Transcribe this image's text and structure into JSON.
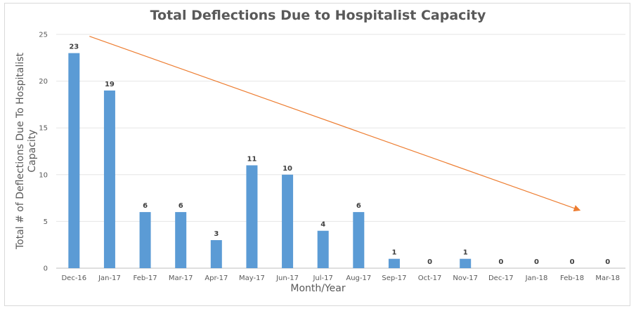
{
  "chart_data": {
    "type": "bar",
    "title": "Total Deflections Due to Hospitalist Capacity",
    "xlabel": "Month/Year",
    "ylabel": "Total # of Deflections Due To Hospitalist Capacity",
    "categories": [
      "Dec-16",
      "Jan-17",
      "Feb-17",
      "Mar-17",
      "Apr-17",
      "May-17",
      "Jun-17",
      "Jul-17",
      "Aug-17",
      "Sep-17",
      "Oct-17",
      "Nov-17",
      "Dec-17",
      "Jan-18",
      "Feb-18",
      "Mar-18"
    ],
    "values": [
      23,
      19,
      6,
      6,
      3,
      11,
      10,
      4,
      6,
      1,
      0,
      1,
      0,
      0,
      0,
      0
    ],
    "ylim": [
      0,
      25
    ],
    "yticks": [
      0,
      5,
      10,
      15,
      20,
      25
    ],
    "grid": true,
    "legend": "none",
    "bar_color": "#5b9bd5",
    "trend_arrow": {
      "color": "#ed7d31",
      "start": {
        "x": "Dec-16",
        "y": 24.8
      },
      "end": {
        "x": "Feb-18",
        "y": 6.2
      }
    }
  }
}
